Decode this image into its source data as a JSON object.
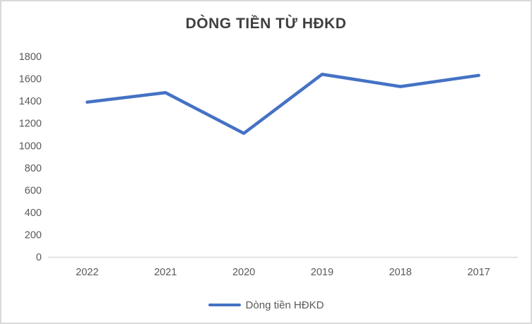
{
  "chart_data": {
    "type": "line",
    "title": "DÒNG TIỀN TỪ HĐKD",
    "categories": [
      "2022",
      "2021",
      "2020",
      "2019",
      "2018",
      "2017"
    ],
    "series": [
      {
        "name": "Dòng tiền HĐKD",
        "values": [
          1390,
          1475,
          1110,
          1640,
          1530,
          1630
        ]
      }
    ],
    "xlabel": "",
    "ylabel": "",
    "ylim": [
      0,
      1800
    ],
    "ytick_step": 200,
    "yticks": [
      0,
      200,
      400,
      600,
      800,
      1000,
      1200,
      1400,
      1600,
      1800
    ],
    "grid": false,
    "legend_position": "bottom",
    "colors": {
      "line": "#4472C4",
      "axis_line": "#D9D9D9",
      "tick_label": "#595959",
      "title": "#404040",
      "frame_border": "#D9D9D9"
    }
  }
}
